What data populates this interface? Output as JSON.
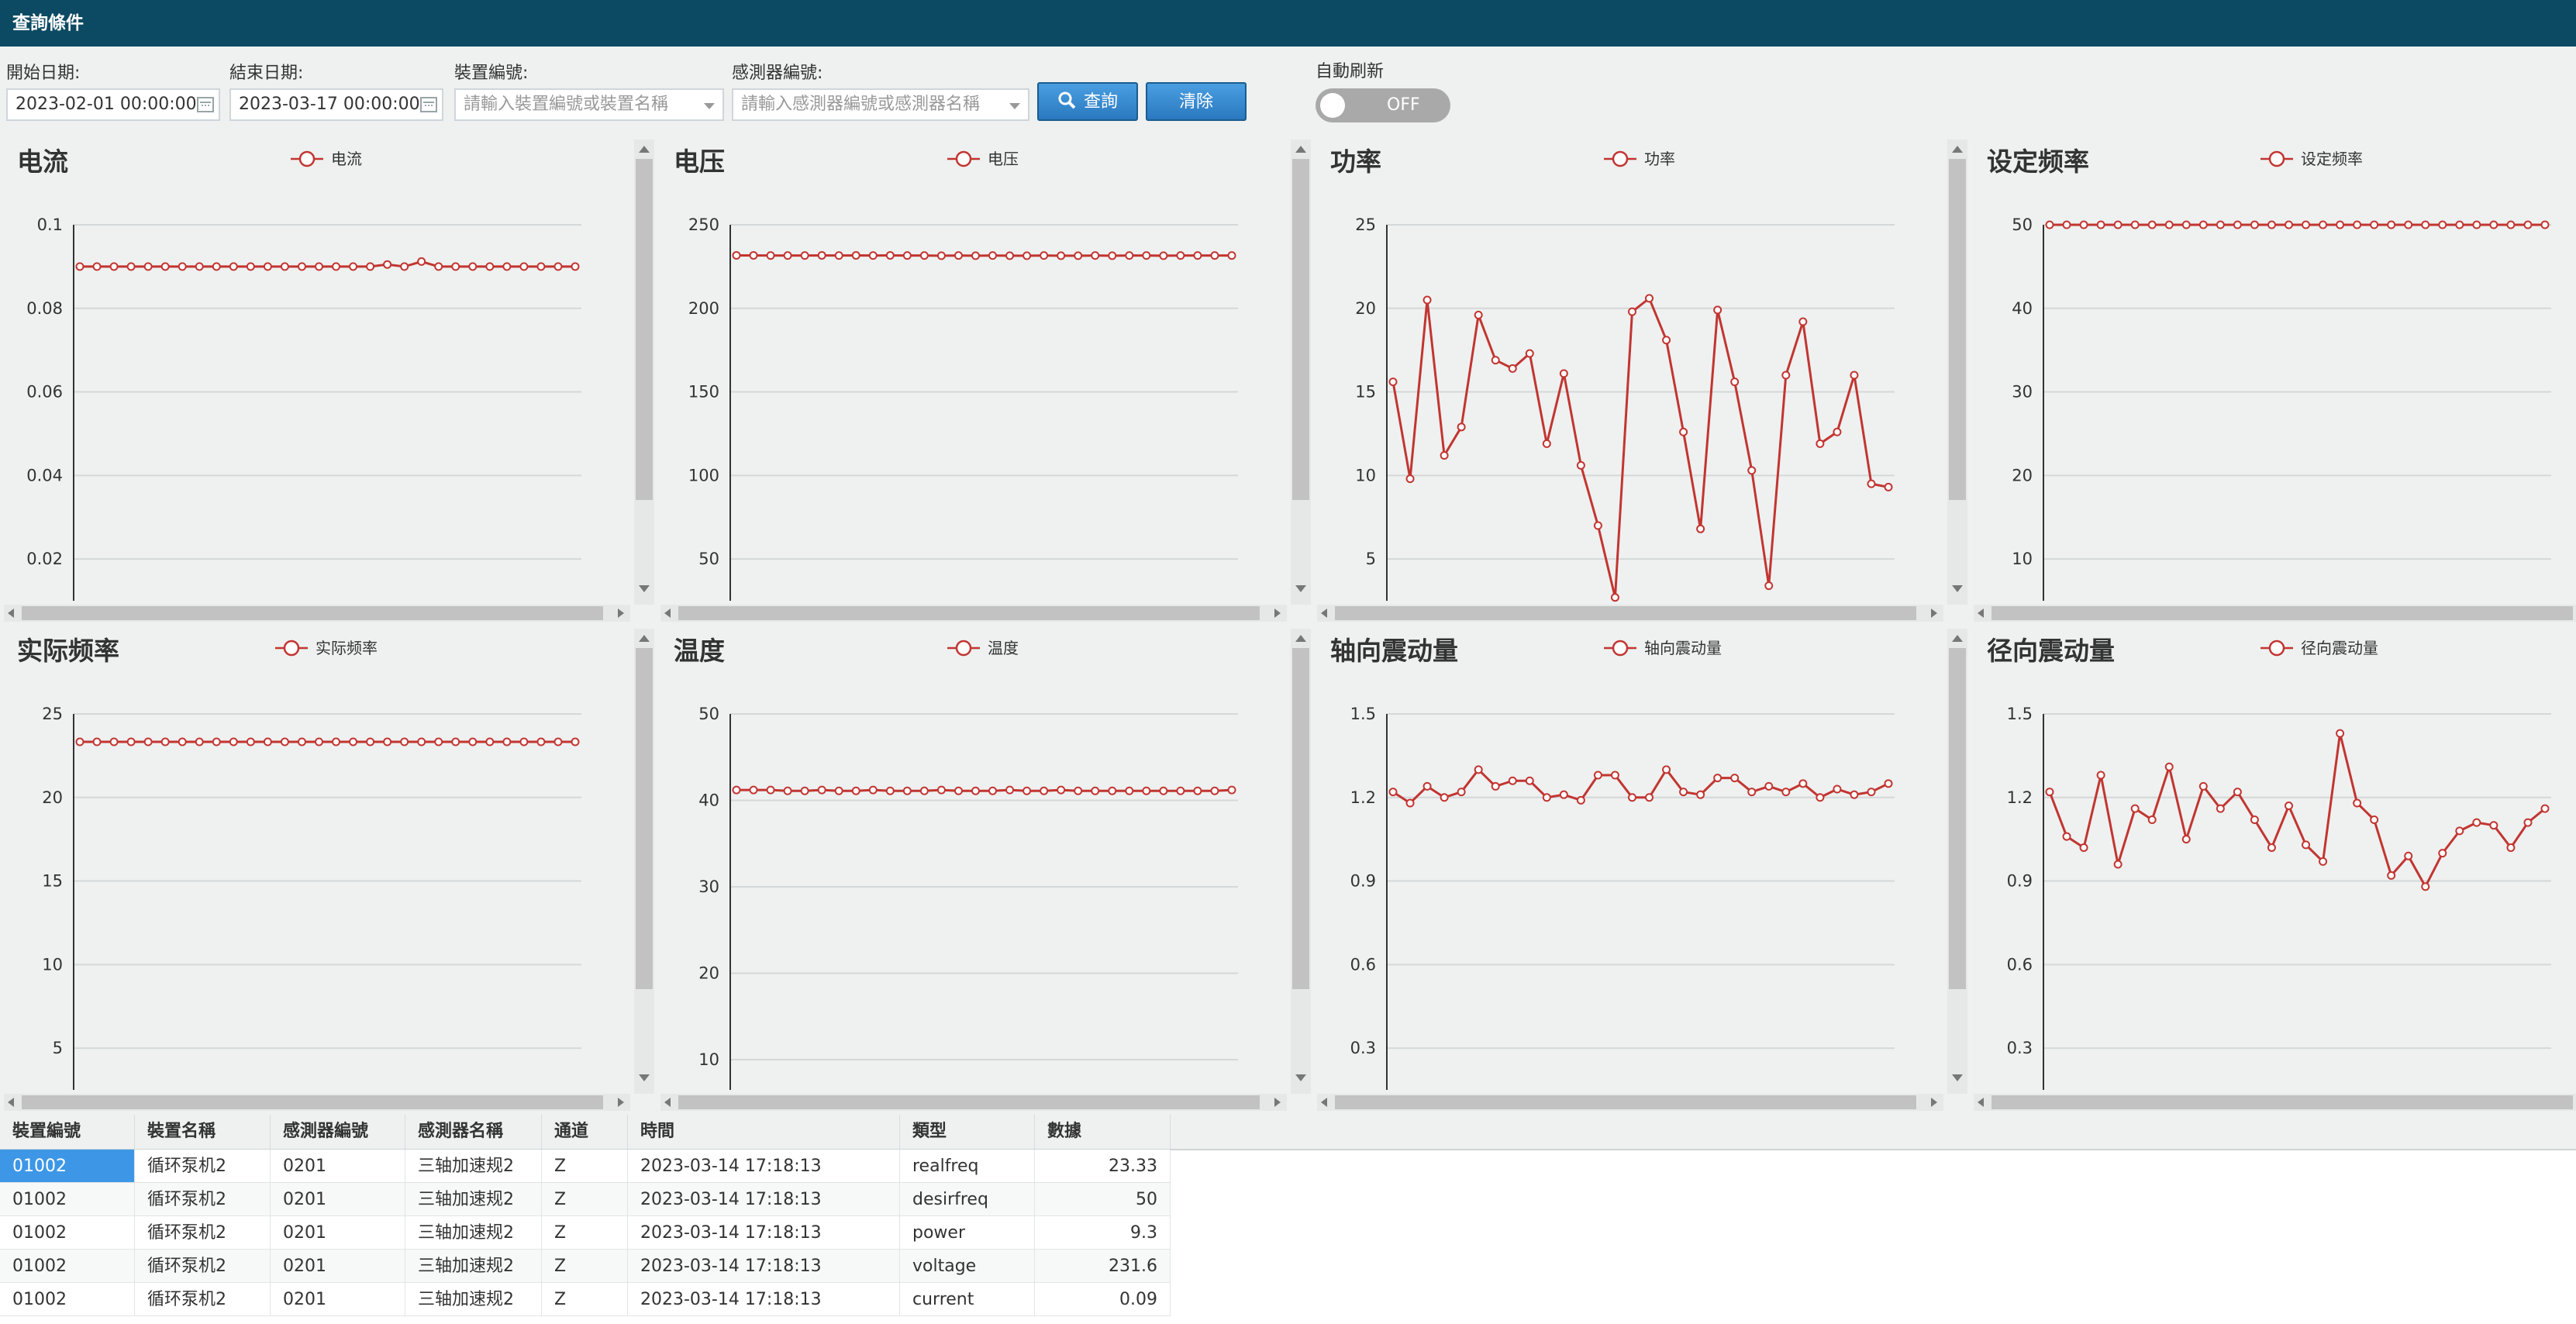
{
  "query": {
    "title": "查詢條件",
    "start_label": "開始日期:",
    "start_value": "2023-02-01 00:00:00",
    "end_label": "結束日期:",
    "end_value": "2023-03-17 00:00:00",
    "device_label": "裝置編號:",
    "device_placeholder": "請輸入裝置編號或裝置名稱",
    "sensor_label": "感測器編號:",
    "sensor_placeholder": "請輸入感測器編號或感測器名稱",
    "search_label": "查詢",
    "clear_label": "清除",
    "auto_label": "自動刷新",
    "toggle_state": "OFF"
  },
  "colors": {
    "series": "#c23531",
    "titlebar": "#0c4a63",
    "button": "#2a79c0"
  },
  "chart_data": [
    {
      "type": "line",
      "title": "电流",
      "legend": "电流",
      "ylim": [
        0.01,
        0.1
      ],
      "yticks": [
        "0.1",
        "0.08",
        "0.06",
        "0.04",
        "0.02"
      ],
      "tickvals": [
        0.1,
        0.08,
        0.06,
        0.04,
        0.02
      ],
      "values": [
        0.09,
        0.09,
        0.09,
        0.09,
        0.09,
        0.09,
        0.09,
        0.09,
        0.09,
        0.09,
        0.09,
        0.09,
        0.09,
        0.09,
        0.09,
        0.09,
        0.09,
        0.09,
        0.0905,
        0.09,
        0.0912,
        0.09,
        0.09,
        0.09,
        0.09,
        0.09,
        0.09,
        0.09,
        0.09,
        0.09
      ]
    },
    {
      "type": "line",
      "title": "电压",
      "legend": "电压",
      "ylim": [
        25,
        250
      ],
      "yticks": [
        "250",
        "200",
        "150",
        "100",
        "50"
      ],
      "tickvals": [
        250,
        200,
        150,
        100,
        50
      ],
      "values": [
        231.7,
        231.7,
        231.6,
        231.6,
        231.6,
        231.7,
        231.6,
        231.7,
        231.6,
        231.7,
        231.6,
        231.6,
        231.5,
        231.6,
        231.5,
        231.6,
        231.5,
        231.5,
        231.6,
        231.5,
        231.5,
        231.6,
        231.5,
        231.6,
        231.6,
        231.5,
        231.6,
        231.6,
        231.6,
        231.6
      ]
    },
    {
      "type": "line",
      "title": "功率",
      "legend": "功率",
      "ylim": [
        2.5,
        25
      ],
      "yticks": [
        "25",
        "20",
        "15",
        "10",
        "5"
      ],
      "tickvals": [
        25,
        20,
        15,
        10,
        5
      ],
      "values": [
        15.6,
        9.8,
        20.5,
        11.2,
        12.9,
        19.6,
        16.9,
        16.4,
        17.3,
        11.9,
        16.1,
        10.6,
        7.0,
        2.7,
        19.8,
        20.6,
        18.1,
        12.6,
        6.8,
        19.9,
        15.6,
        10.3,
        3.4,
        16.0,
        19.2,
        11.9,
        12.6,
        16.0,
        9.5,
        9.3
      ]
    },
    {
      "type": "line",
      "title": "设定频率",
      "legend": "设定频率",
      "ylim": [
        5,
        50
      ],
      "yticks": [
        "50",
        "40",
        "30",
        "20",
        "10"
      ],
      "tickvals": [
        50,
        40,
        30,
        20,
        10
      ],
      "values": [
        50,
        50,
        50,
        50,
        50,
        50,
        50,
        50,
        50,
        50,
        50,
        50,
        50,
        50,
        50,
        50,
        50,
        50,
        50,
        50,
        50,
        50,
        50,
        50,
        50,
        50,
        50,
        50,
        50,
        50
      ]
    },
    {
      "type": "line",
      "title": "实际频率",
      "legend": "实际频率",
      "ylim": [
        2.5,
        25
      ],
      "yticks": [
        "25",
        "20",
        "15",
        "10",
        "5"
      ],
      "tickvals": [
        25,
        20,
        15,
        10,
        5
      ],
      "values": [
        23.33,
        23.33,
        23.33,
        23.33,
        23.33,
        23.33,
        23.33,
        23.33,
        23.33,
        23.33,
        23.33,
        23.33,
        23.33,
        23.33,
        23.33,
        23.33,
        23.33,
        23.33,
        23.33,
        23.33,
        23.33,
        23.33,
        23.33,
        23.33,
        23.33,
        23.33,
        23.33,
        23.33,
        23.33,
        23.33
      ]
    },
    {
      "type": "line",
      "title": "温度",
      "legend": "温度",
      "ylim": [
        6.5,
        50
      ],
      "yticks": [
        "50",
        "40",
        "30",
        "20",
        "10"
      ],
      "tickvals": [
        50,
        40,
        30,
        20,
        10
      ],
      "values": [
        41.2,
        41.2,
        41.2,
        41.1,
        41.1,
        41.2,
        41.1,
        41.1,
        41.2,
        41.1,
        41.1,
        41.1,
        41.2,
        41.1,
        41.1,
        41.1,
        41.2,
        41.1,
        41.1,
        41.2,
        41.1,
        41.1,
        41.1,
        41.1,
        41.1,
        41.1,
        41.1,
        41.1,
        41.1,
        41.2
      ]
    },
    {
      "type": "line",
      "title": "轴向震动量",
      "legend": "轴向震动量",
      "ylim": [
        0.15,
        1.5
      ],
      "yticks": [
        "1.5",
        "1.2",
        "0.9",
        "0.6",
        "0.3"
      ],
      "tickvals": [
        1.5,
        1.2,
        0.9,
        0.6,
        0.3
      ],
      "values": [
        1.22,
        1.18,
        1.24,
        1.2,
        1.22,
        1.3,
        1.24,
        1.26,
        1.26,
        1.2,
        1.21,
        1.19,
        1.28,
        1.28,
        1.2,
        1.2,
        1.3,
        1.22,
        1.21,
        1.27,
        1.27,
        1.22,
        1.24,
        1.22,
        1.25,
        1.2,
        1.23,
        1.21,
        1.22,
        1.25
      ]
    },
    {
      "type": "line",
      "title": "径向震动量",
      "legend": "径向震动量",
      "ylim": [
        0.15,
        1.5
      ],
      "yticks": [
        "1.5",
        "1.2",
        "0.9",
        "0.6",
        "0.3"
      ],
      "tickvals": [
        1.5,
        1.2,
        0.9,
        0.6,
        0.3
      ],
      "values": [
        1.22,
        1.06,
        1.02,
        1.28,
        0.96,
        1.16,
        1.12,
        1.31,
        1.05,
        1.24,
        1.16,
        1.22,
        1.12,
        1.02,
        1.17,
        1.03,
        0.97,
        1.43,
        1.18,
        1.12,
        0.92,
        0.99,
        0.88,
        1.0,
        1.08,
        1.11,
        1.1,
        1.02,
        1.11,
        1.16
      ]
    }
  ],
  "table": {
    "columns": [
      "裝置編號",
      "裝置名稱",
      "感測器編號",
      "感測器名稱",
      "通道",
      "時間",
      "類型",
      "數據"
    ],
    "rows": [
      [
        "01002",
        "循环泵机2",
        "0201",
        "三轴加速规2",
        "Z",
        "2023-03-14 17:18:13",
        "realfreq",
        "23.33"
      ],
      [
        "01002",
        "循环泵机2",
        "0201",
        "三轴加速规2",
        "Z",
        "2023-03-14 17:18:13",
        "desirfreq",
        "50"
      ],
      [
        "01002",
        "循环泵机2",
        "0201",
        "三轴加速规2",
        "Z",
        "2023-03-14 17:18:13",
        "power",
        "9.3"
      ],
      [
        "01002",
        "循环泵机2",
        "0201",
        "三轴加速规2",
        "Z",
        "2023-03-14 17:18:13",
        "voltage",
        "231.6"
      ],
      [
        "01002",
        "循环泵机2",
        "0201",
        "三轴加速规2",
        "Z",
        "2023-03-14 17:18:13",
        "current",
        "0.09"
      ]
    ]
  }
}
